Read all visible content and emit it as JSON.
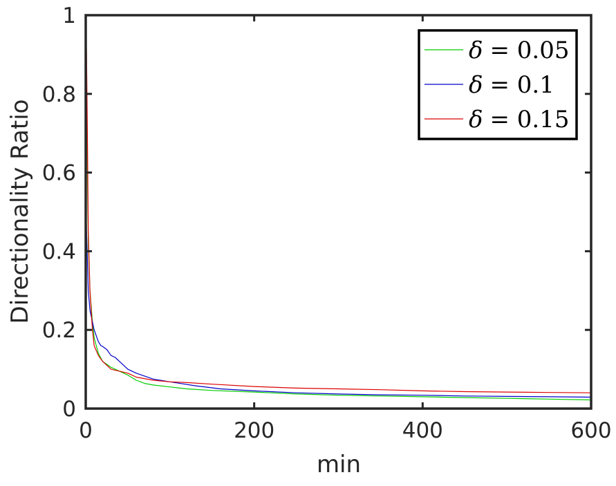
{
  "chart_data": {
    "type": "line",
    "title": "",
    "xlabel": "min",
    "ylabel": "Directionality Ratio",
    "xlim": [
      0,
      600
    ],
    "ylim": [
      0,
      1
    ],
    "xticks": [
      0,
      200,
      400,
      600
    ],
    "xtick_labels": [
      "0",
      "200",
      "400",
      "600"
    ],
    "yticks": [
      0,
      0.2,
      0.4,
      0.6,
      0.8,
      1
    ],
    "ytick_labels": [
      "0",
      "0.2",
      "0.4",
      "0.6",
      "0.8",
      "1"
    ],
    "grid": false,
    "legend_position": "top-right",
    "series": [
      {
        "name": "δ = 0.05",
        "legend": {
          "symbol": "δ",
          "rest": "= 0.05"
        },
        "color": "#00cc00",
        "x": [
          0,
          1,
          2,
          3,
          5,
          8,
          10,
          15,
          20,
          30,
          40,
          50,
          60,
          70,
          80,
          100,
          120,
          150,
          200,
          250,
          300,
          350,
          400,
          450,
          500,
          550,
          600
        ],
        "y": [
          1.0,
          0.82,
          0.6,
          0.42,
          0.3,
          0.22,
          0.18,
          0.14,
          0.12,
          0.105,
          0.095,
          0.085,
          0.072,
          0.064,
          0.06,
          0.055,
          0.05,
          0.046,
          0.042,
          0.037,
          0.034,
          0.032,
          0.03,
          0.028,
          0.026,
          0.024,
          0.022
        ]
      },
      {
        "name": "δ = 0.1",
        "legend": {
          "symbol": "δ",
          "rest": "= 0.1"
        },
        "color": "#0000cc",
        "x": [
          0,
          1,
          2,
          3,
          5,
          8,
          10,
          15,
          18,
          20,
          25,
          30,
          35,
          40,
          50,
          60,
          80,
          100,
          130,
          160,
          200,
          250,
          300,
          350,
          400,
          450,
          500,
          550,
          600
        ],
        "y": [
          0.55,
          0.45,
          0.38,
          0.3,
          0.25,
          0.22,
          0.2,
          0.17,
          0.16,
          0.158,
          0.15,
          0.135,
          0.13,
          0.12,
          0.1,
          0.09,
          0.075,
          0.068,
          0.058,
          0.05,
          0.045,
          0.04,
          0.037,
          0.035,
          0.034,
          0.032,
          0.031,
          0.03,
          0.029
        ]
      },
      {
        "name": "δ = 0.15",
        "legend": {
          "symbol": "δ",
          "rest": "= 0.15"
        },
        "color": "#dd0000",
        "x": [
          0,
          1,
          2,
          3,
          5,
          8,
          10,
          15,
          20,
          30,
          40,
          50,
          60,
          80,
          100,
          120,
          150,
          200,
          250,
          300,
          350,
          400,
          450,
          500,
          550,
          600
        ],
        "y": [
          1.0,
          0.9,
          0.7,
          0.45,
          0.3,
          0.2,
          0.16,
          0.135,
          0.12,
          0.1,
          0.095,
          0.09,
          0.08,
          0.072,
          0.068,
          0.066,
          0.062,
          0.056,
          0.052,
          0.05,
          0.048,
          0.045,
          0.043,
          0.042,
          0.041,
          0.04
        ]
      }
    ]
  }
}
